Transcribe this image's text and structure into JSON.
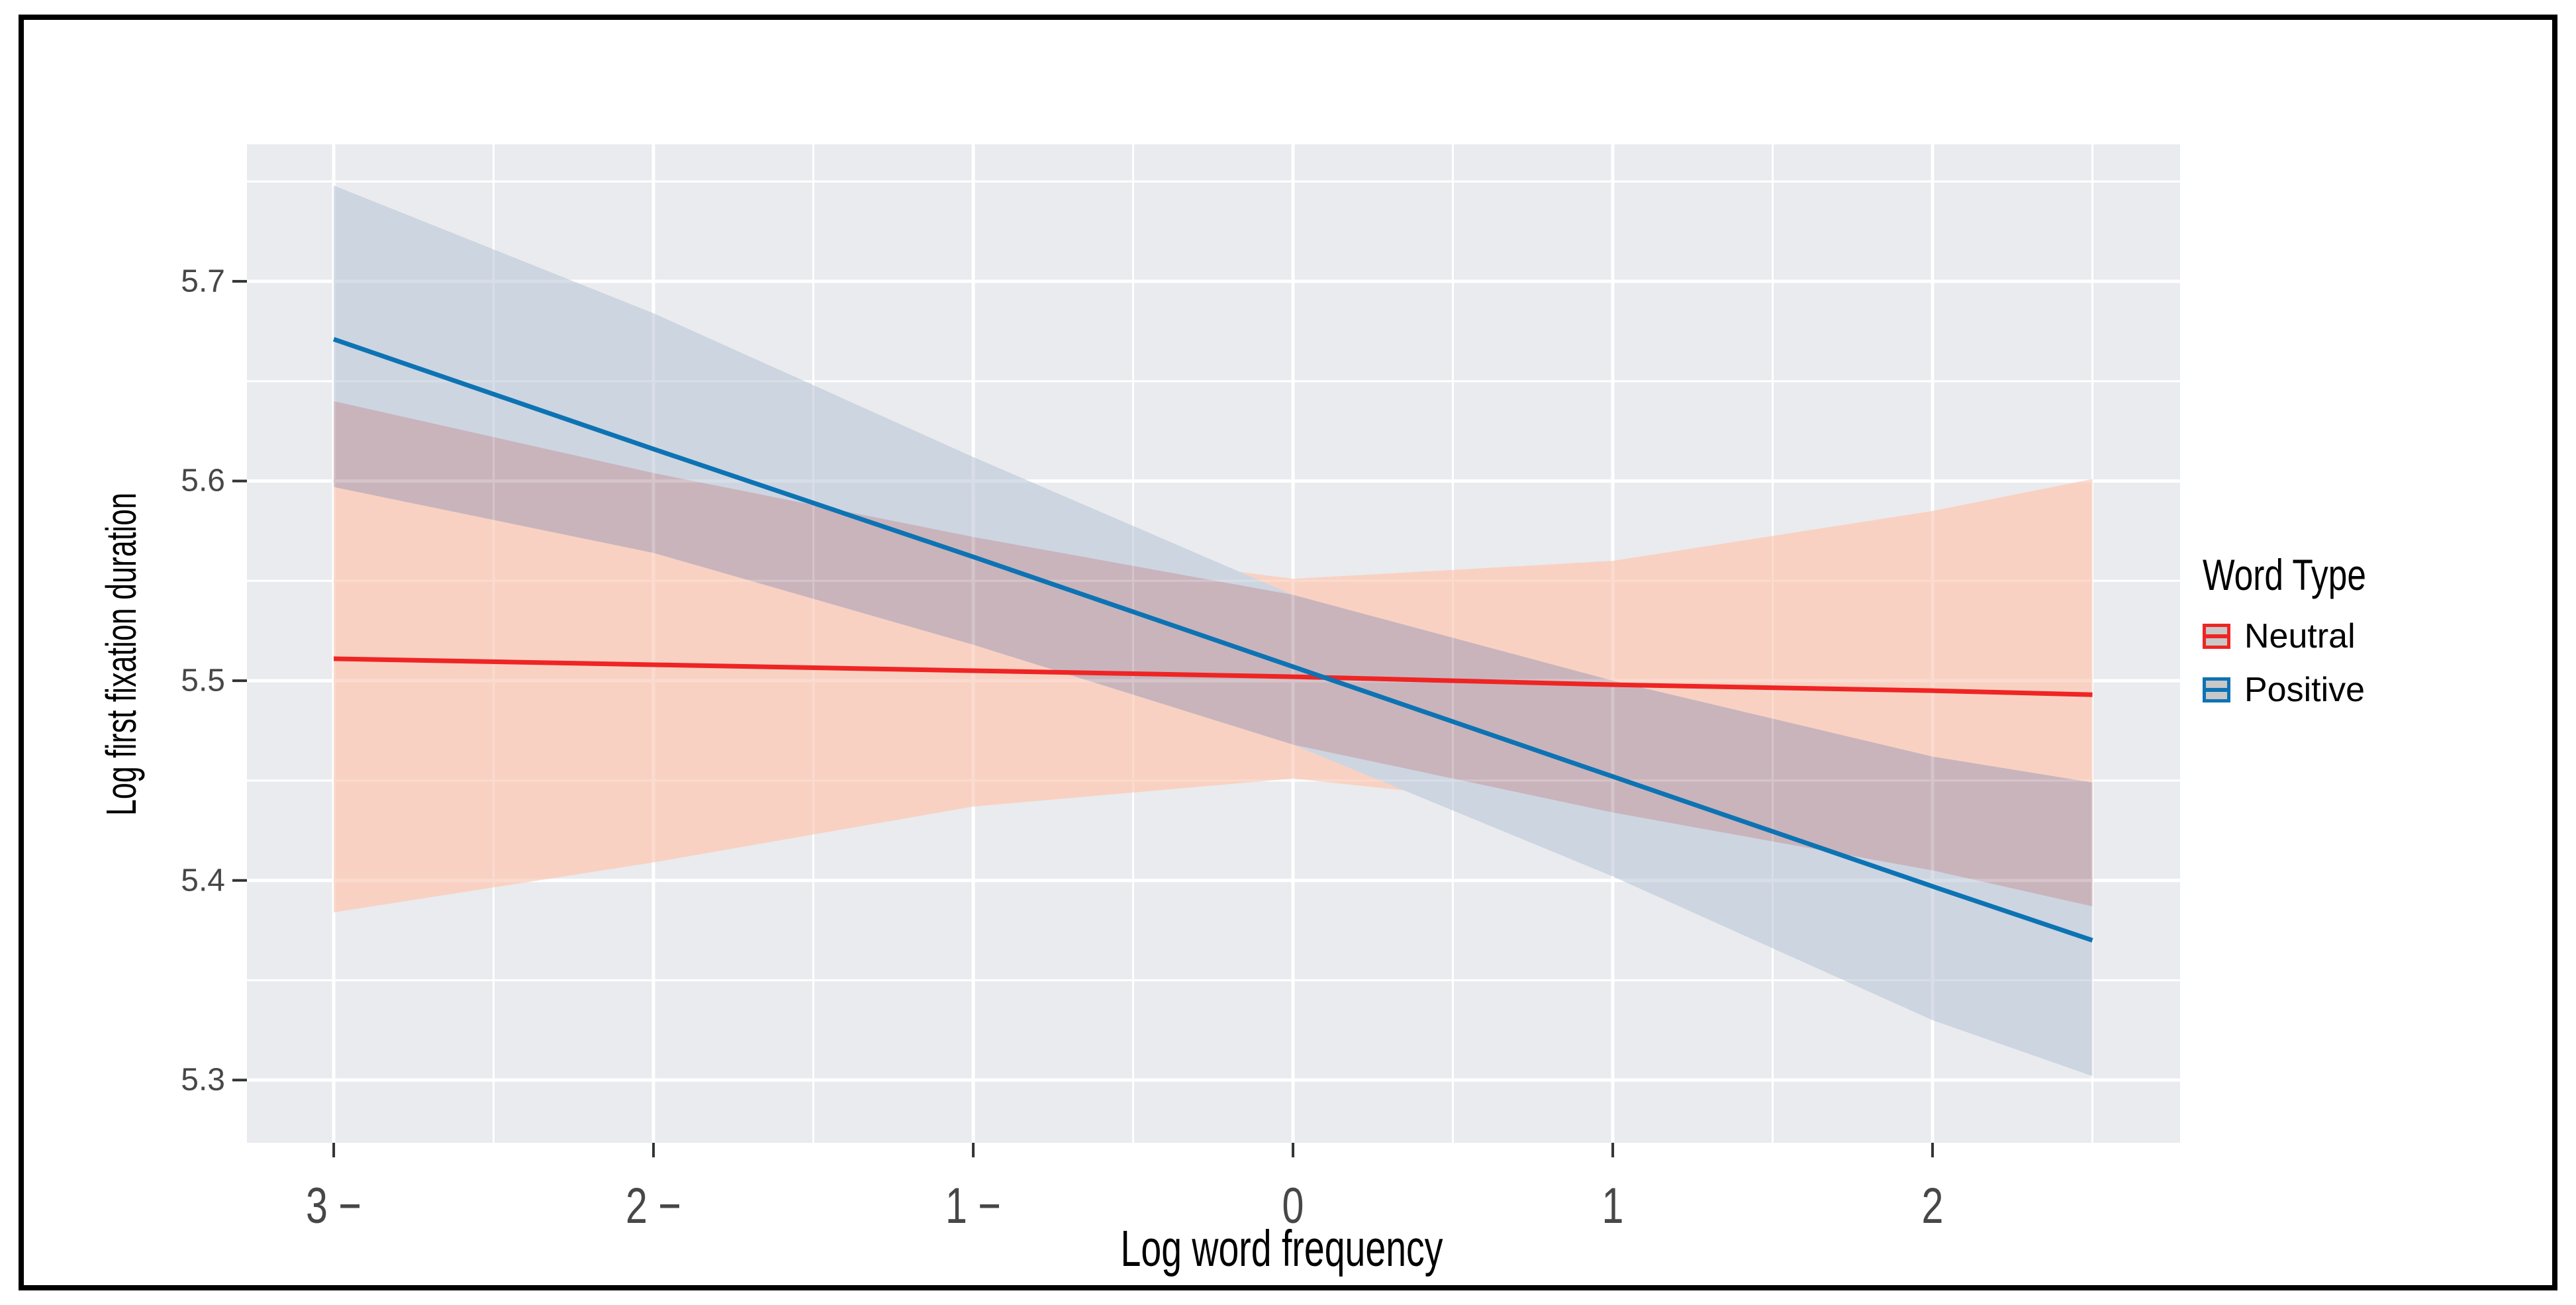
{
  "frame": {
    "border_color": "#000000",
    "background": "#FFFFFF"
  },
  "chart_data": {
    "type": "line",
    "title": "",
    "xlabel": "Log word frequency",
    "ylabel": "Log first fixation duration",
    "legend_title": "Word Type",
    "legend_position": "right",
    "grid": "on",
    "panel_bg": "#E9EBEE",
    "grid_color": "#FFFFFF",
    "tick_color": "#333333",
    "overlap_fill": "#C9B4BC",
    "x_domain": [
      -3.2714,
      2.7742
    ],
    "y_domain": [
      5.2686,
      5.7686
    ],
    "x_ticks": [
      {
        "x": -3,
        "label": "3 −"
      },
      {
        "x": -2,
        "label": "2 −"
      },
      {
        "x": -1,
        "label": "1 −"
      },
      {
        "x": 0,
        "label": "0"
      },
      {
        "x": 1,
        "label": "1"
      },
      {
        "x": 2,
        "label": "2"
      }
    ],
    "y_ticks": [
      {
        "v": 5.3,
        "label": "5.3"
      },
      {
        "v": 5.4,
        "label": "5.4"
      },
      {
        "v": 5.5,
        "label": "5.5"
      },
      {
        "v": 5.6,
        "label": "5.6"
      },
      {
        "v": 5.7,
        "label": "5.7"
      }
    ],
    "x": [
      -3,
      -2,
      -1,
      0,
      1,
      2,
      2.5
    ],
    "series": [
      {
        "name": "Neutral",
        "color": "#EE2524",
        "fill": "#F9D1C2",
        "line": [
          5.511,
          5.508,
          5.505,
          5.502,
          5.498,
          5.495,
          5.493
        ],
        "upper": [
          5.64,
          5.604,
          5.572,
          5.551,
          5.56,
          5.585,
          5.601
        ],
        "lower": [
          5.384,
          5.409,
          5.437,
          5.451,
          5.434,
          5.405,
          5.387
        ]
      },
      {
        "name": "Positive",
        "color": "#0D73B3",
        "fill": "#CDD5E1",
        "line": [
          5.671,
          5.616,
          5.562,
          5.507,
          5.452,
          5.397,
          5.37
        ],
        "upper": [
          5.748,
          5.684,
          5.612,
          5.543,
          5.5,
          5.462,
          5.449
        ],
        "lower": [
          5.597,
          5.564,
          5.518,
          5.468,
          5.402,
          5.33,
          5.302
        ]
      }
    ]
  }
}
